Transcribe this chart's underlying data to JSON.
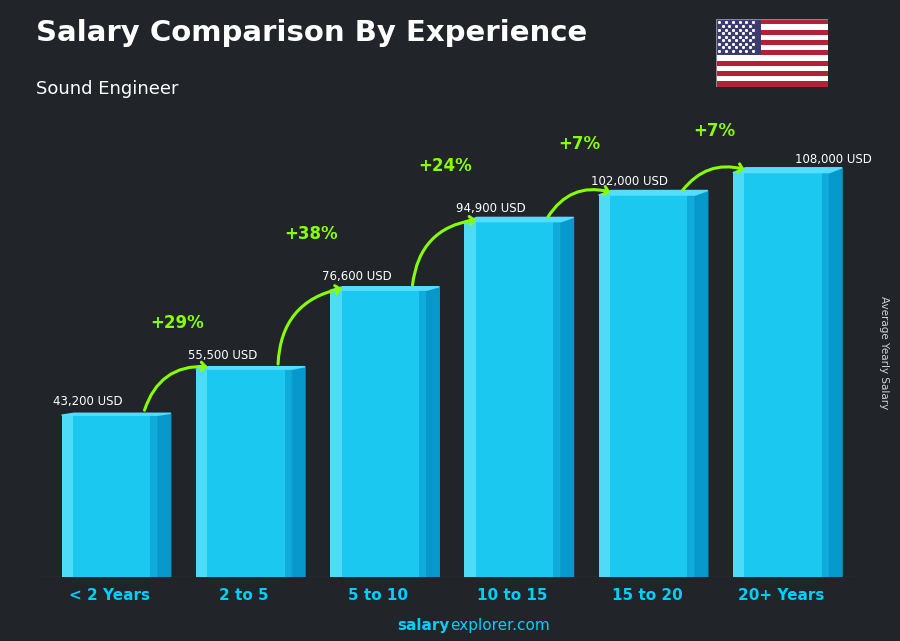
{
  "title": "Salary Comparison By Experience",
  "subtitle": "Sound Engineer",
  "categories": [
    "< 2 Years",
    "2 to 5",
    "5 to 10",
    "10 to 15",
    "15 to 20",
    "20+ Years"
  ],
  "values": [
    43200,
    55500,
    76600,
    94900,
    102000,
    108000
  ],
  "value_labels": [
    "43,200 USD",
    "55,500 USD",
    "76,600 USD",
    "94,900 USD",
    "102,000 USD",
    "108,000 USD"
  ],
  "pct_labels": [
    "+29%",
    "+38%",
    "+24%",
    "+7%",
    "+7%"
  ],
  "bar_color_face": "#1AC8F0",
  "bar_color_side": "#0899CC",
  "bar_color_top": "#55DDFF",
  "bar_color_highlight": "#80EEFF",
  "text_color": "#ffffff",
  "green_color": "#88FF00",
  "cat_color": "#00CFFF",
  "ylabel_text": "Average Yearly Salary",
  "footer_bold": "salary",
  "footer_normal": "explorer.com",
  "footer_color": "#00CFFF",
  "ylim": [
    0,
    125000
  ],
  "bar_width": 0.72,
  "bg_color": [
    0.13,
    0.14,
    0.16
  ]
}
